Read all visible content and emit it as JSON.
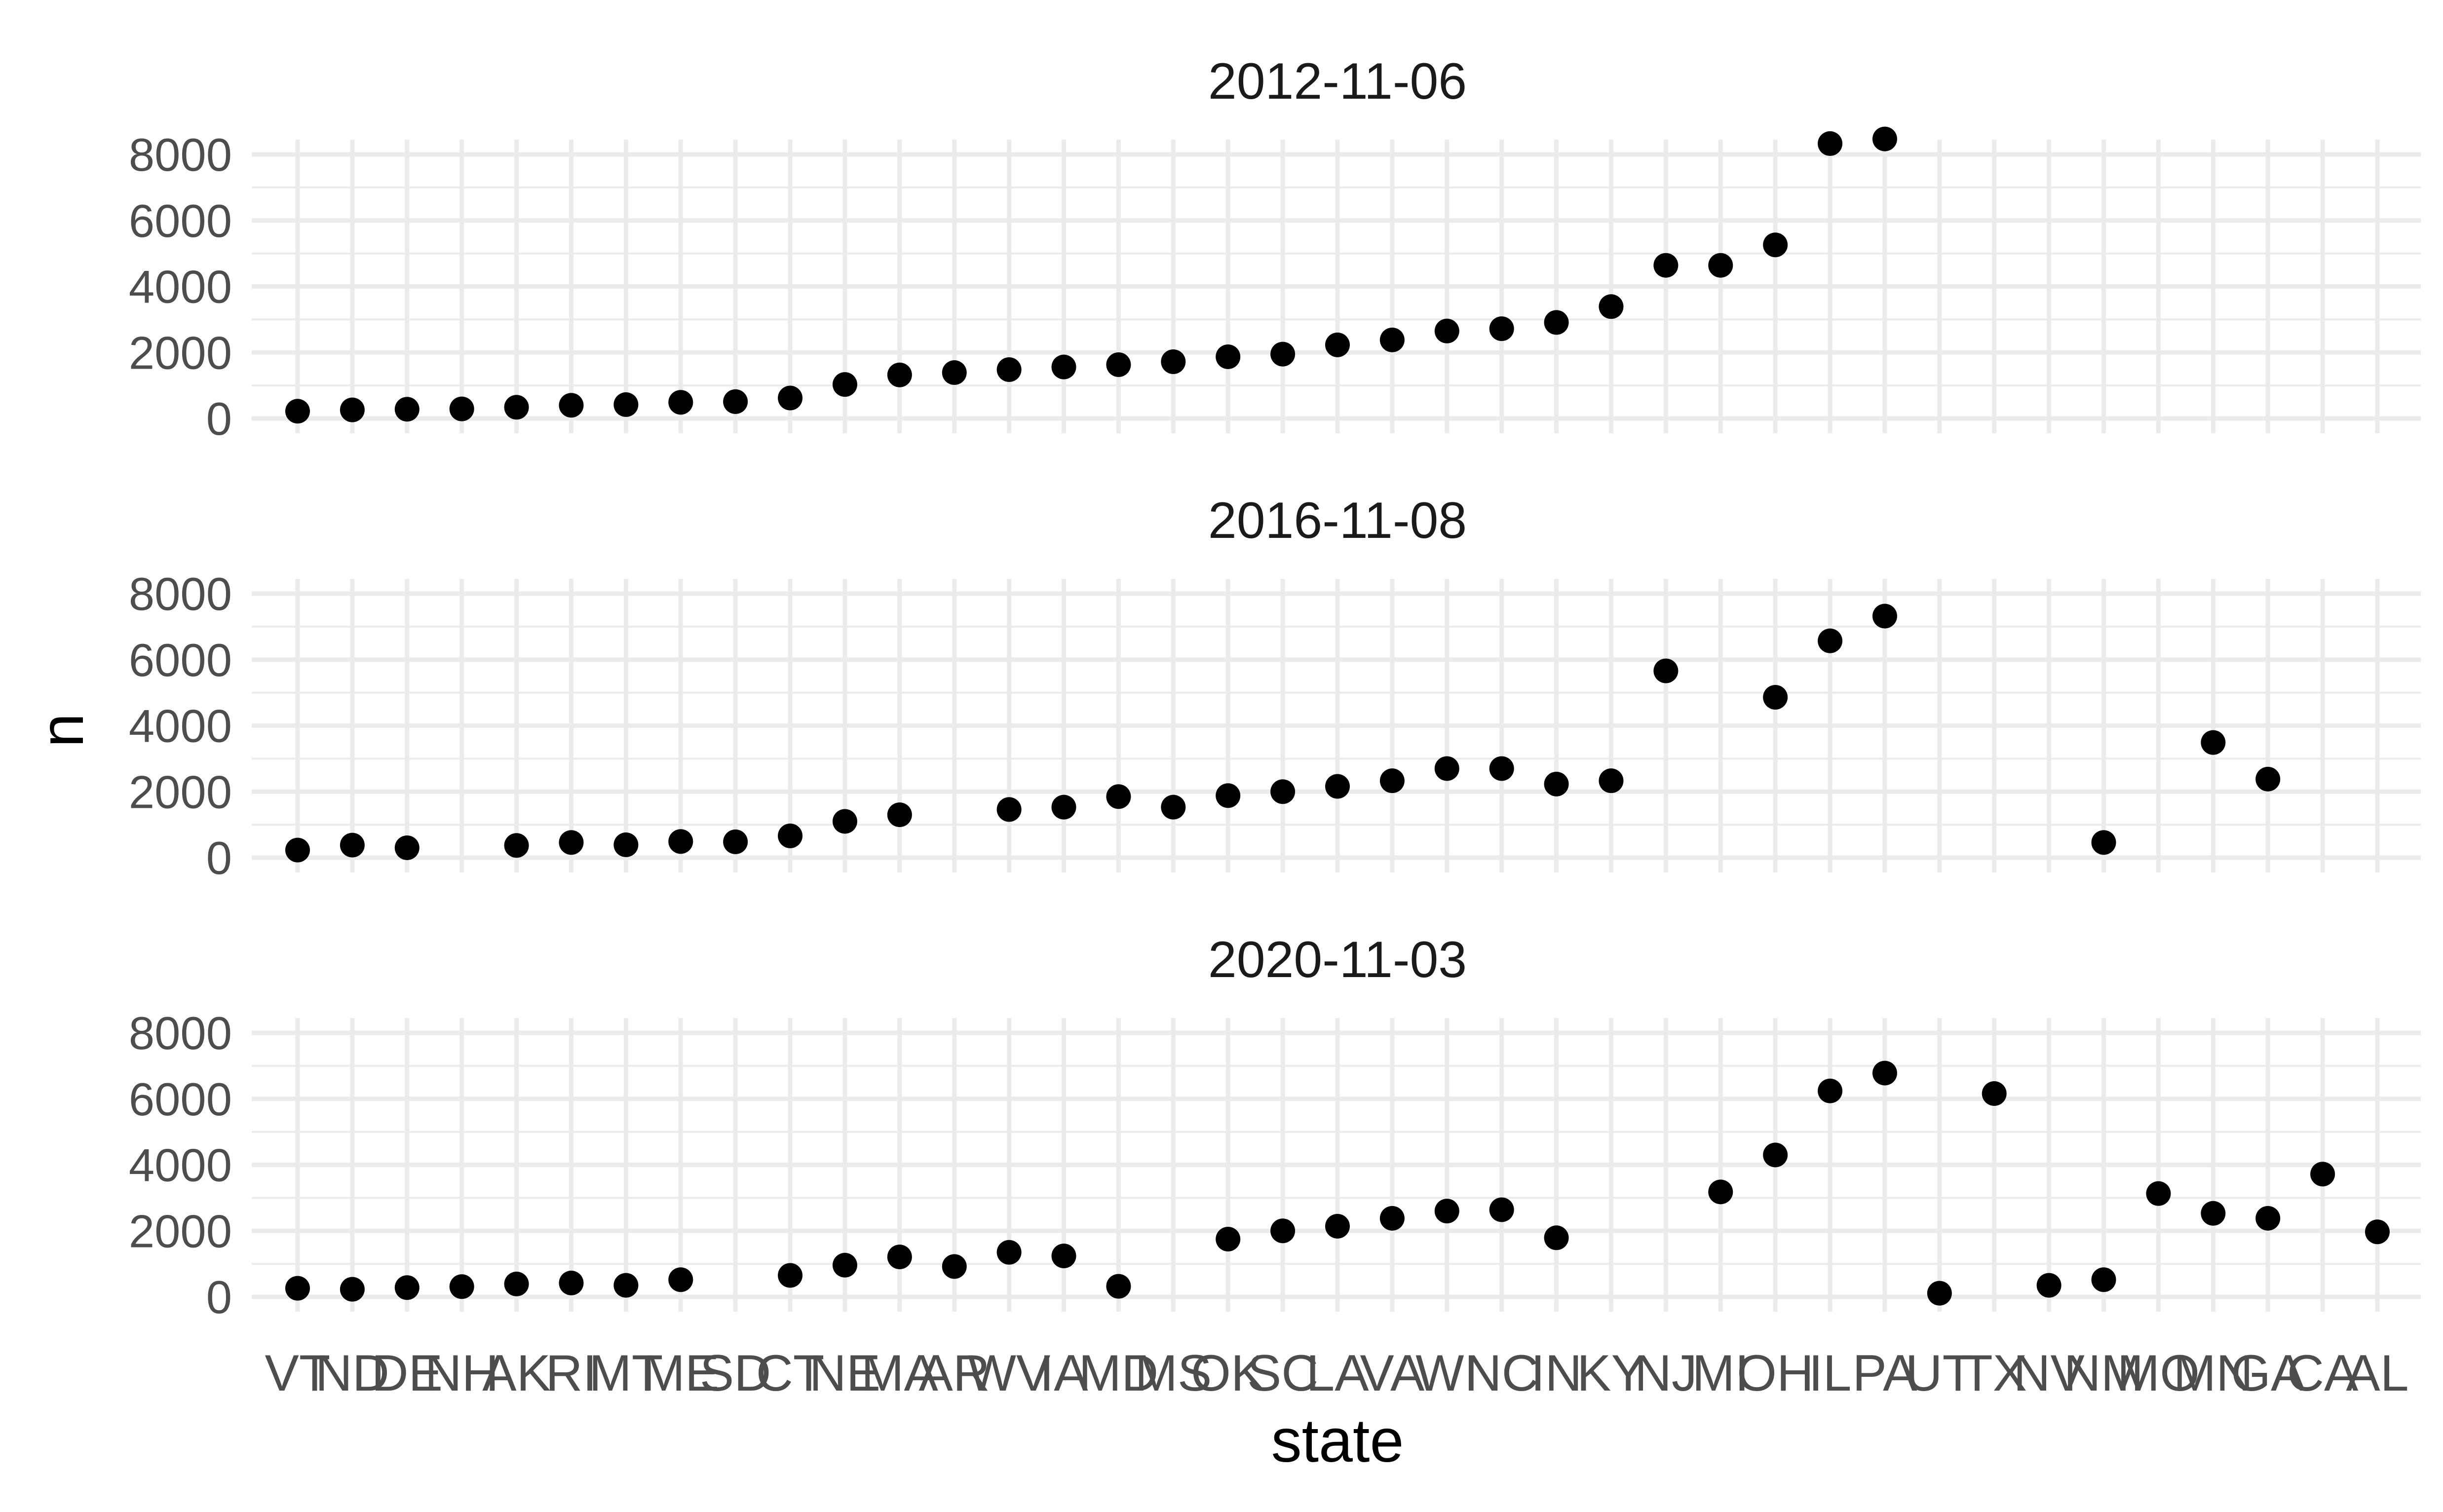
{
  "chart_data": {
    "type": "scatter",
    "xlabel": "state",
    "ylabel": "n",
    "ylim": [
      0,
      8000
    ],
    "yticks": [
      0,
      2000,
      4000,
      6000,
      8000
    ],
    "grid": true,
    "categories": [
      "VT",
      "ND",
      "DE",
      "NH",
      "AK",
      "RI",
      "MT",
      "ME",
      "SD",
      "CT",
      "NE",
      "MA",
      "AR",
      "WV",
      "IA",
      "MD",
      "MS",
      "OK",
      "SC",
      "LA",
      "VA",
      "WI",
      "NC",
      "IN",
      "KY",
      "NJ",
      "MI",
      "OH",
      "IL",
      "PA",
      "UT",
      "TX",
      "NV",
      "NM",
      "MO",
      "MN",
      "GA",
      "CA",
      "AL"
    ],
    "panels": [
      {
        "title": "2012-11-06",
        "points": [
          {
            "x": "VT",
            "y": 220
          },
          {
            "x": "ND",
            "y": 260
          },
          {
            "x": "DE",
            "y": 280
          },
          {
            "x": "NH",
            "y": 290
          },
          {
            "x": "AK",
            "y": 340
          },
          {
            "x": "RI",
            "y": 400
          },
          {
            "x": "MT",
            "y": 420
          },
          {
            "x": "ME",
            "y": 490
          },
          {
            "x": "SD",
            "y": 510
          },
          {
            "x": "CT",
            "y": 620
          },
          {
            "x": "NE",
            "y": 1030
          },
          {
            "x": "MA",
            "y": 1320
          },
          {
            "x": "AR",
            "y": 1390
          },
          {
            "x": "WV",
            "y": 1480
          },
          {
            "x": "IA",
            "y": 1560
          },
          {
            "x": "MD",
            "y": 1630
          },
          {
            "x": "MS",
            "y": 1720
          },
          {
            "x": "OK",
            "y": 1870
          },
          {
            "x": "SC",
            "y": 1950
          },
          {
            "x": "LA",
            "y": 2230
          },
          {
            "x": "VA",
            "y": 2380
          },
          {
            "x": "WI",
            "y": 2650
          },
          {
            "x": "NC",
            "y": 2720
          },
          {
            "x": "IN",
            "y": 2910
          },
          {
            "x": "KY",
            "y": 3390
          },
          {
            "x": "NJ",
            "y": 4640
          },
          {
            "x": "MI",
            "y": 4640
          },
          {
            "x": "OH",
            "y": 5260
          },
          {
            "x": "IL",
            "y": 8330
          },
          {
            "x": "PA",
            "y": 8470
          }
        ]
      },
      {
        "title": "2016-11-08",
        "points": [
          {
            "x": "VT",
            "y": 230
          },
          {
            "x": "ND",
            "y": 380
          },
          {
            "x": "DE",
            "y": 300
          },
          {
            "x": "AK",
            "y": 370
          },
          {
            "x": "RI",
            "y": 460
          },
          {
            "x": "MT",
            "y": 390
          },
          {
            "x": "ME",
            "y": 490
          },
          {
            "x": "SD",
            "y": 480
          },
          {
            "x": "CT",
            "y": 660
          },
          {
            "x": "NE",
            "y": 1100
          },
          {
            "x": "MA",
            "y": 1300
          },
          {
            "x": "WV",
            "y": 1460
          },
          {
            "x": "IA",
            "y": 1530
          },
          {
            "x": "MD",
            "y": 1850
          },
          {
            "x": "MS",
            "y": 1530
          },
          {
            "x": "OK",
            "y": 1880
          },
          {
            "x": "SC",
            "y": 2000
          },
          {
            "x": "LA",
            "y": 2160
          },
          {
            "x": "VA",
            "y": 2330
          },
          {
            "x": "WI",
            "y": 2700
          },
          {
            "x": "NC",
            "y": 2700
          },
          {
            "x": "IN",
            "y": 2230
          },
          {
            "x": "KY",
            "y": 2330
          },
          {
            "x": "NJ",
            "y": 5660
          },
          {
            "x": "OH",
            "y": 4860
          },
          {
            "x": "IL",
            "y": 6570
          },
          {
            "x": "PA",
            "y": 7320
          },
          {
            "x": "NM",
            "y": 460
          },
          {
            "x": "MN",
            "y": 3490
          },
          {
            "x": "GA",
            "y": 2380
          }
        ]
      },
      {
        "title": "2020-11-03",
        "points": [
          {
            "x": "VT",
            "y": 260
          },
          {
            "x": "ND",
            "y": 230
          },
          {
            "x": "DE",
            "y": 280
          },
          {
            "x": "NH",
            "y": 310
          },
          {
            "x": "AK",
            "y": 390
          },
          {
            "x": "RI",
            "y": 420
          },
          {
            "x": "MT",
            "y": 350
          },
          {
            "x": "ME",
            "y": 520
          },
          {
            "x": "CT",
            "y": 650
          },
          {
            "x": "NE",
            "y": 960
          },
          {
            "x": "MA",
            "y": 1210
          },
          {
            "x": "AR",
            "y": 920
          },
          {
            "x": "WV",
            "y": 1350
          },
          {
            "x": "IA",
            "y": 1240
          },
          {
            "x": "MD",
            "y": 320
          },
          {
            "x": "OK",
            "y": 1750
          },
          {
            "x": "SC",
            "y": 2000
          },
          {
            "x": "LA",
            "y": 2140
          },
          {
            "x": "VA",
            "y": 2380
          },
          {
            "x": "WI",
            "y": 2600
          },
          {
            "x": "NC",
            "y": 2640
          },
          {
            "x": "IN",
            "y": 1790
          },
          {
            "x": "MI",
            "y": 3180
          },
          {
            "x": "OH",
            "y": 4300
          },
          {
            "x": "IL",
            "y": 6240
          },
          {
            "x": "PA",
            "y": 6780
          },
          {
            "x": "UT",
            "y": 110
          },
          {
            "x": "TX",
            "y": 6160
          },
          {
            "x": "NV",
            "y": 350
          },
          {
            "x": "NM",
            "y": 520
          },
          {
            "x": "MO",
            "y": 3130
          },
          {
            "x": "MN",
            "y": 2530
          },
          {
            "x": "GA",
            "y": 2380
          },
          {
            "x": "CA",
            "y": 3720
          },
          {
            "x": "AL",
            "y": 1970
          }
        ]
      }
    ]
  }
}
